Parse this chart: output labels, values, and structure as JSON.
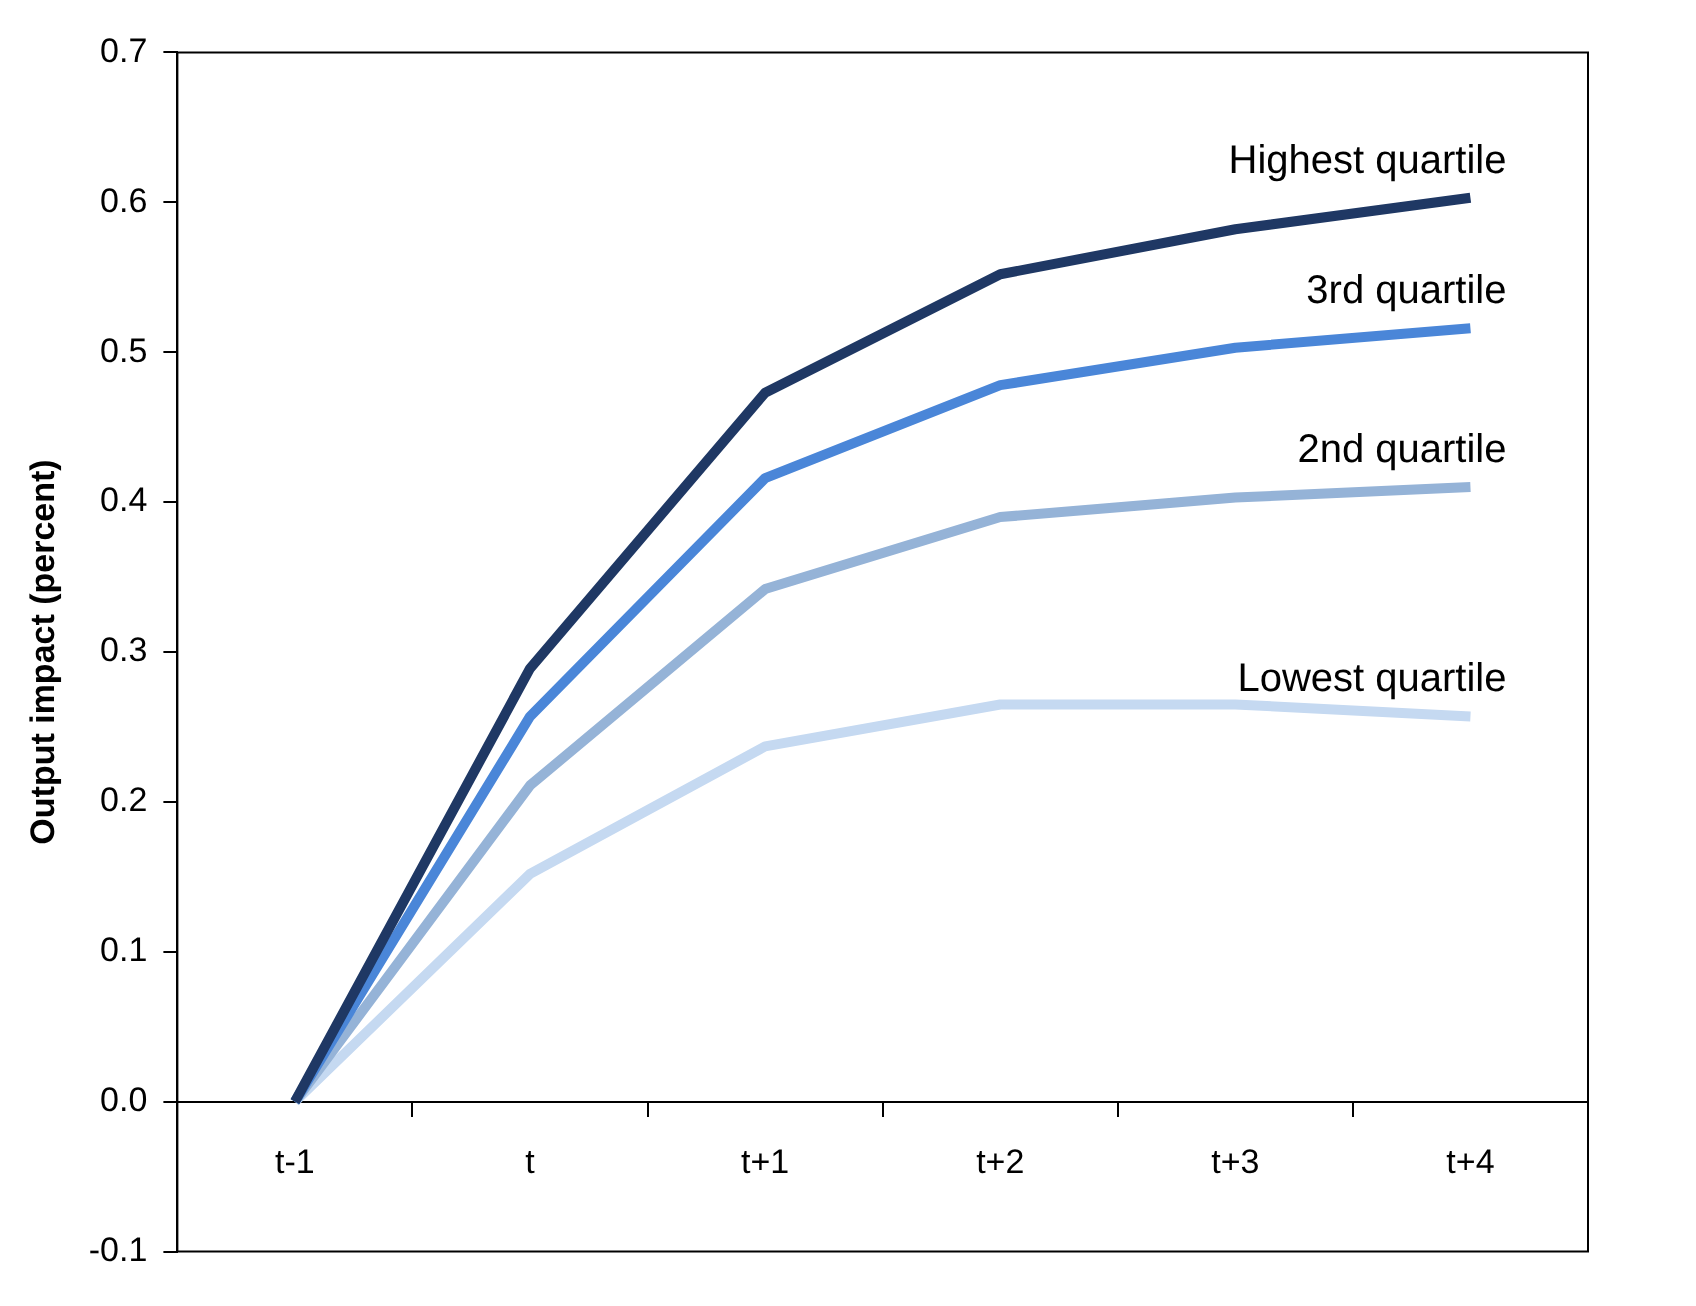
{
  "chart_data": {
    "type": "line",
    "ylabel": "Output impact (percent)",
    "categories": [
      "t-1",
      "t",
      "t+1",
      "t+2",
      "t+3",
      "t+4"
    ],
    "series": [
      {
        "name": "Highest quartile",
        "color": "#1f3864",
        "values": [
          0,
          0.289,
          0.473,
          0.552,
          0.582,
          0.603
        ]
      },
      {
        "name": "3rd quartile",
        "color": "#4a86d8",
        "values": [
          0,
          0.257,
          0.416,
          0.478,
          0.503,
          0.516
        ]
      },
      {
        "name": "2nd quartile",
        "color": "#95b3d7",
        "values": [
          0,
          0.211,
          0.342,
          0.39,
          0.403,
          0.41
        ]
      },
      {
        "name": "Lowest quartile",
        "color": "#c5d9f1",
        "values": [
          0,
          0.152,
          0.237,
          0.265,
          0.265,
          0.257
        ]
      }
    ],
    "ylim": [
      -0.1,
      0.7
    ],
    "yticks": [
      -0.1,
      {
        "value": 0,
        "label": "0.0"
      },
      0.1,
      0.2,
      0.3,
      0.4,
      0.5,
      0.6,
      0.7
    ],
    "grid": false,
    "legend": false,
    "marker": "none",
    "line_style": "solid"
  }
}
